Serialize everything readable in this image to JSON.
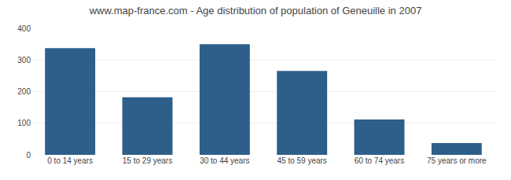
{
  "chart_data": {
    "type": "bar",
    "title": "www.map-france.com - Age distribution of population of Geneuille in 2007",
    "categories": [
      "0 to 14 years",
      "15 to 29 years",
      "30 to 44 years",
      "45 to 59 years",
      "60 to 74 years",
      "75 years or more"
    ],
    "values": [
      337,
      182,
      350,
      265,
      112,
      37
    ],
    "color": "#2e5f8a",
    "ylim": [
      0,
      400
    ],
    "yticks": [
      0,
      100,
      200,
      300,
      400
    ],
    "grid": true
  }
}
